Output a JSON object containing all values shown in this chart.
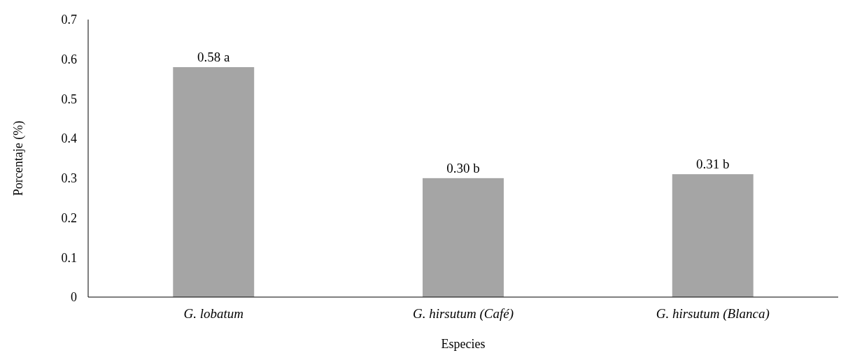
{
  "chart_data": {
    "type": "bar",
    "xlabel": "Especies",
    "ylabel": "Porcentaje (%)",
    "categories": [
      "G. lobatum",
      "G. hirsutum (Café)",
      "G. hirsutum (Blanca)"
    ],
    "values": [
      0.58,
      0.3,
      0.31
    ],
    "value_labels": [
      "0.58 a",
      "0.30 b",
      "0.31 b"
    ],
    "color": "#a5a5a5",
    "ylim": [
      0,
      0.7
    ],
    "yticks": [
      0,
      0.1,
      0.2,
      0.3,
      0.4,
      0.5,
      0.6,
      0.7
    ],
    "grid": false
  }
}
